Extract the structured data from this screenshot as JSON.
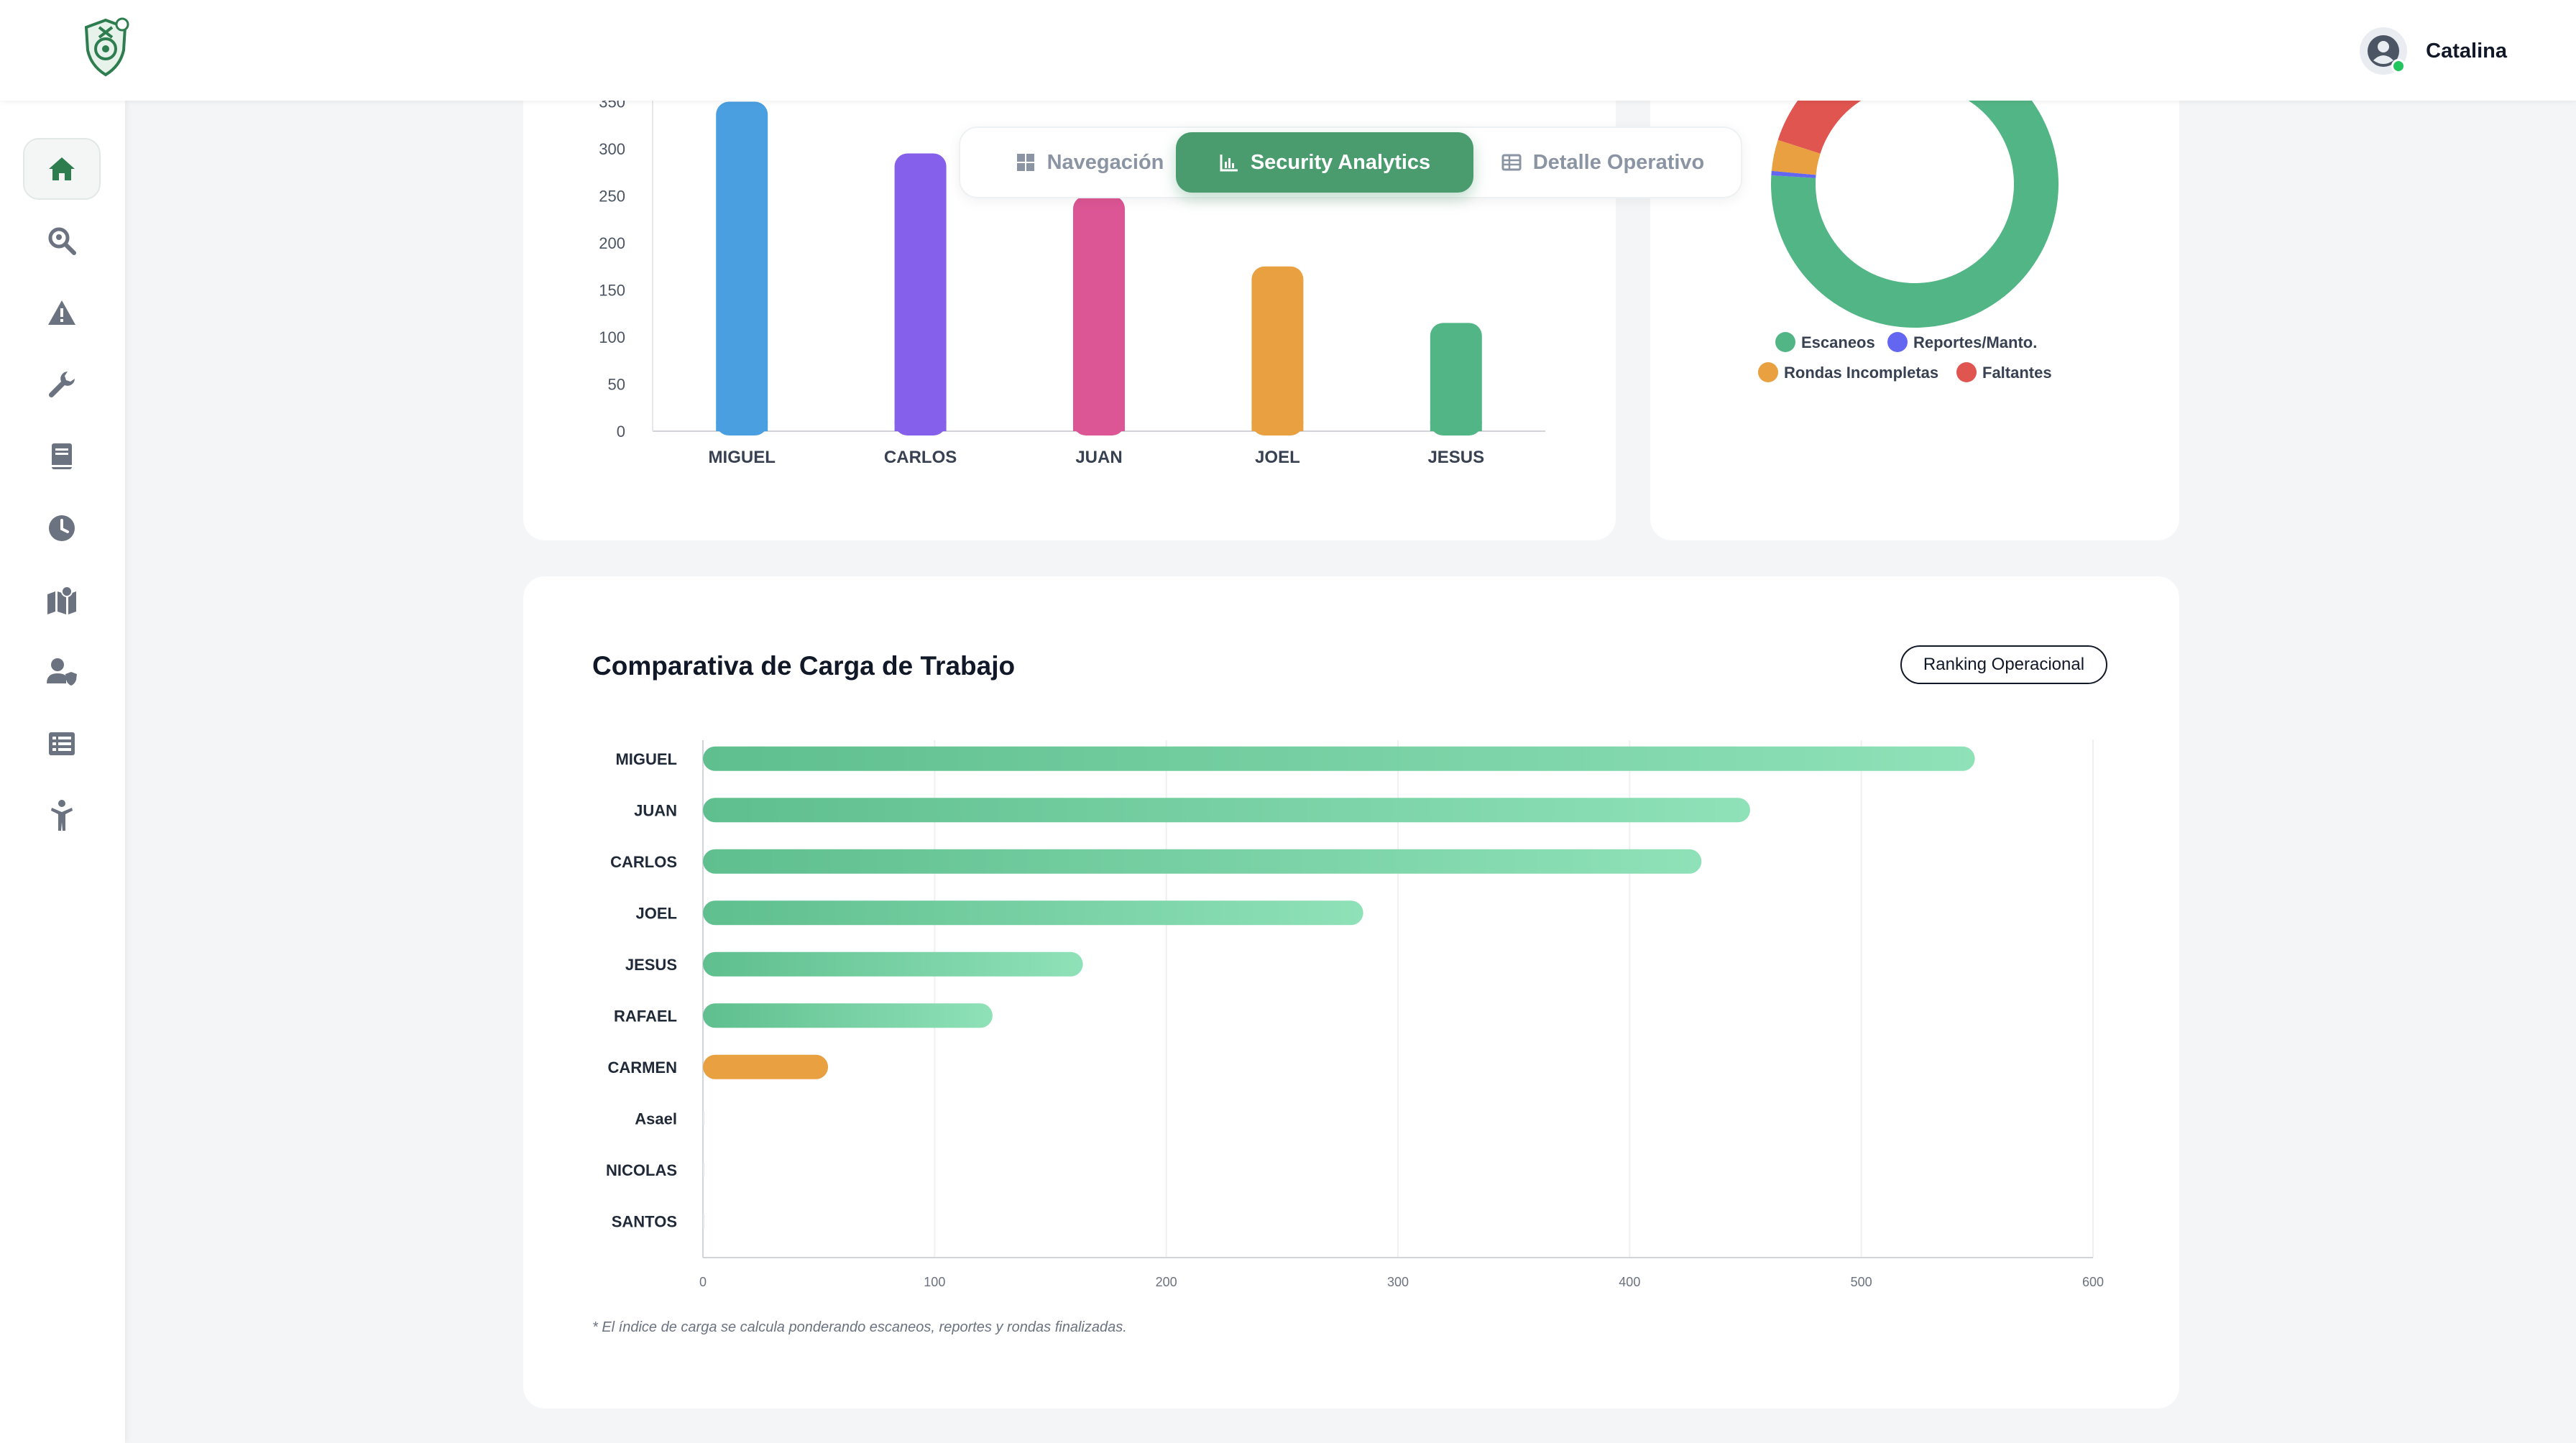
{
  "header": {
    "user_name": "Catalina"
  },
  "sidebar": {
    "items": [
      {
        "icon": "home-icon",
        "active": true
      },
      {
        "icon": "search-location-icon"
      },
      {
        "icon": "alert-icon"
      },
      {
        "icon": "wrench-icon"
      },
      {
        "icon": "book-icon"
      },
      {
        "icon": "clock-icon"
      },
      {
        "icon": "map-icon"
      },
      {
        "icon": "user-shield-icon"
      },
      {
        "icon": "list-icon"
      },
      {
        "icon": "person-icon"
      }
    ]
  },
  "tabs": [
    {
      "label": "Navegación",
      "icon": "grid-icon",
      "active": false
    },
    {
      "label": "Security Analytics",
      "icon": "chart-icon",
      "active": true
    },
    {
      "label": "Detalle Operativo",
      "icon": "table-icon",
      "active": false
    }
  ],
  "colors": {
    "blue": "#4a9fe0",
    "purple": "#8560ea",
    "pink": "#dc5594",
    "orange": "#e9a040",
    "green": "#52b585",
    "red": "#e05550",
    "indigo": "#6366f1",
    "bar_green_start": "#5fbf8e",
    "bar_green_end": "#8fe1b8"
  },
  "chart_data": [
    {
      "type": "bar",
      "categories": [
        "MIGUEL",
        "CARLOS",
        "JUAN",
        "JOEL",
        "JESUS"
      ],
      "values": [
        350,
        295,
        250,
        175,
        115
      ],
      "colors": [
        "#4a9fe0",
        "#8560ea",
        "#dc5594",
        "#e9a040",
        "#52b585"
      ],
      "ylim": [
        0,
        350
      ],
      "yticks": [
        "0",
        "50",
        "100",
        "150",
        "200",
        "250",
        "300",
        "350"
      ]
    },
    {
      "type": "pie",
      "donut": true,
      "legend": [
        "Escaneos",
        "Reportes/Manto.",
        "Rondas Incompletas",
        "Faltantes"
      ],
      "legend_colors": [
        "#52b585",
        "#6366f1",
        "#e9a040",
        "#e05550"
      ],
      "values": [
        75,
        0.5,
        3.5,
        21
      ]
    },
    {
      "type": "bar",
      "orientation": "horizontal",
      "title": "Comparativa de Carga de Trabajo",
      "categories": [
        "MIGUEL",
        "JUAN",
        "CARLOS",
        "JOEL",
        "JESUS",
        "RAFAEL",
        "CARMEN",
        "Asael",
        "NICOLAS",
        "SANTOS"
      ],
      "values": [
        549,
        452,
        431,
        285,
        164,
        125,
        54,
        0,
        0,
        0
      ],
      "highlight": [
        "green",
        "green",
        "green",
        "green",
        "green",
        "green",
        "orange",
        "green",
        "green",
        "green"
      ],
      "xlim": [
        0,
        600
      ],
      "xticks": [
        "0",
        "100",
        "200",
        "300",
        "400",
        "500",
        "600"
      ],
      "grid": true
    }
  ],
  "workload": {
    "title": "Comparativa de Carga de Trabajo",
    "ranking_label": "Ranking Operacional",
    "footnote": "* El índice de carga se calcula ponderando escaneos, reportes y rondas finalizadas."
  }
}
